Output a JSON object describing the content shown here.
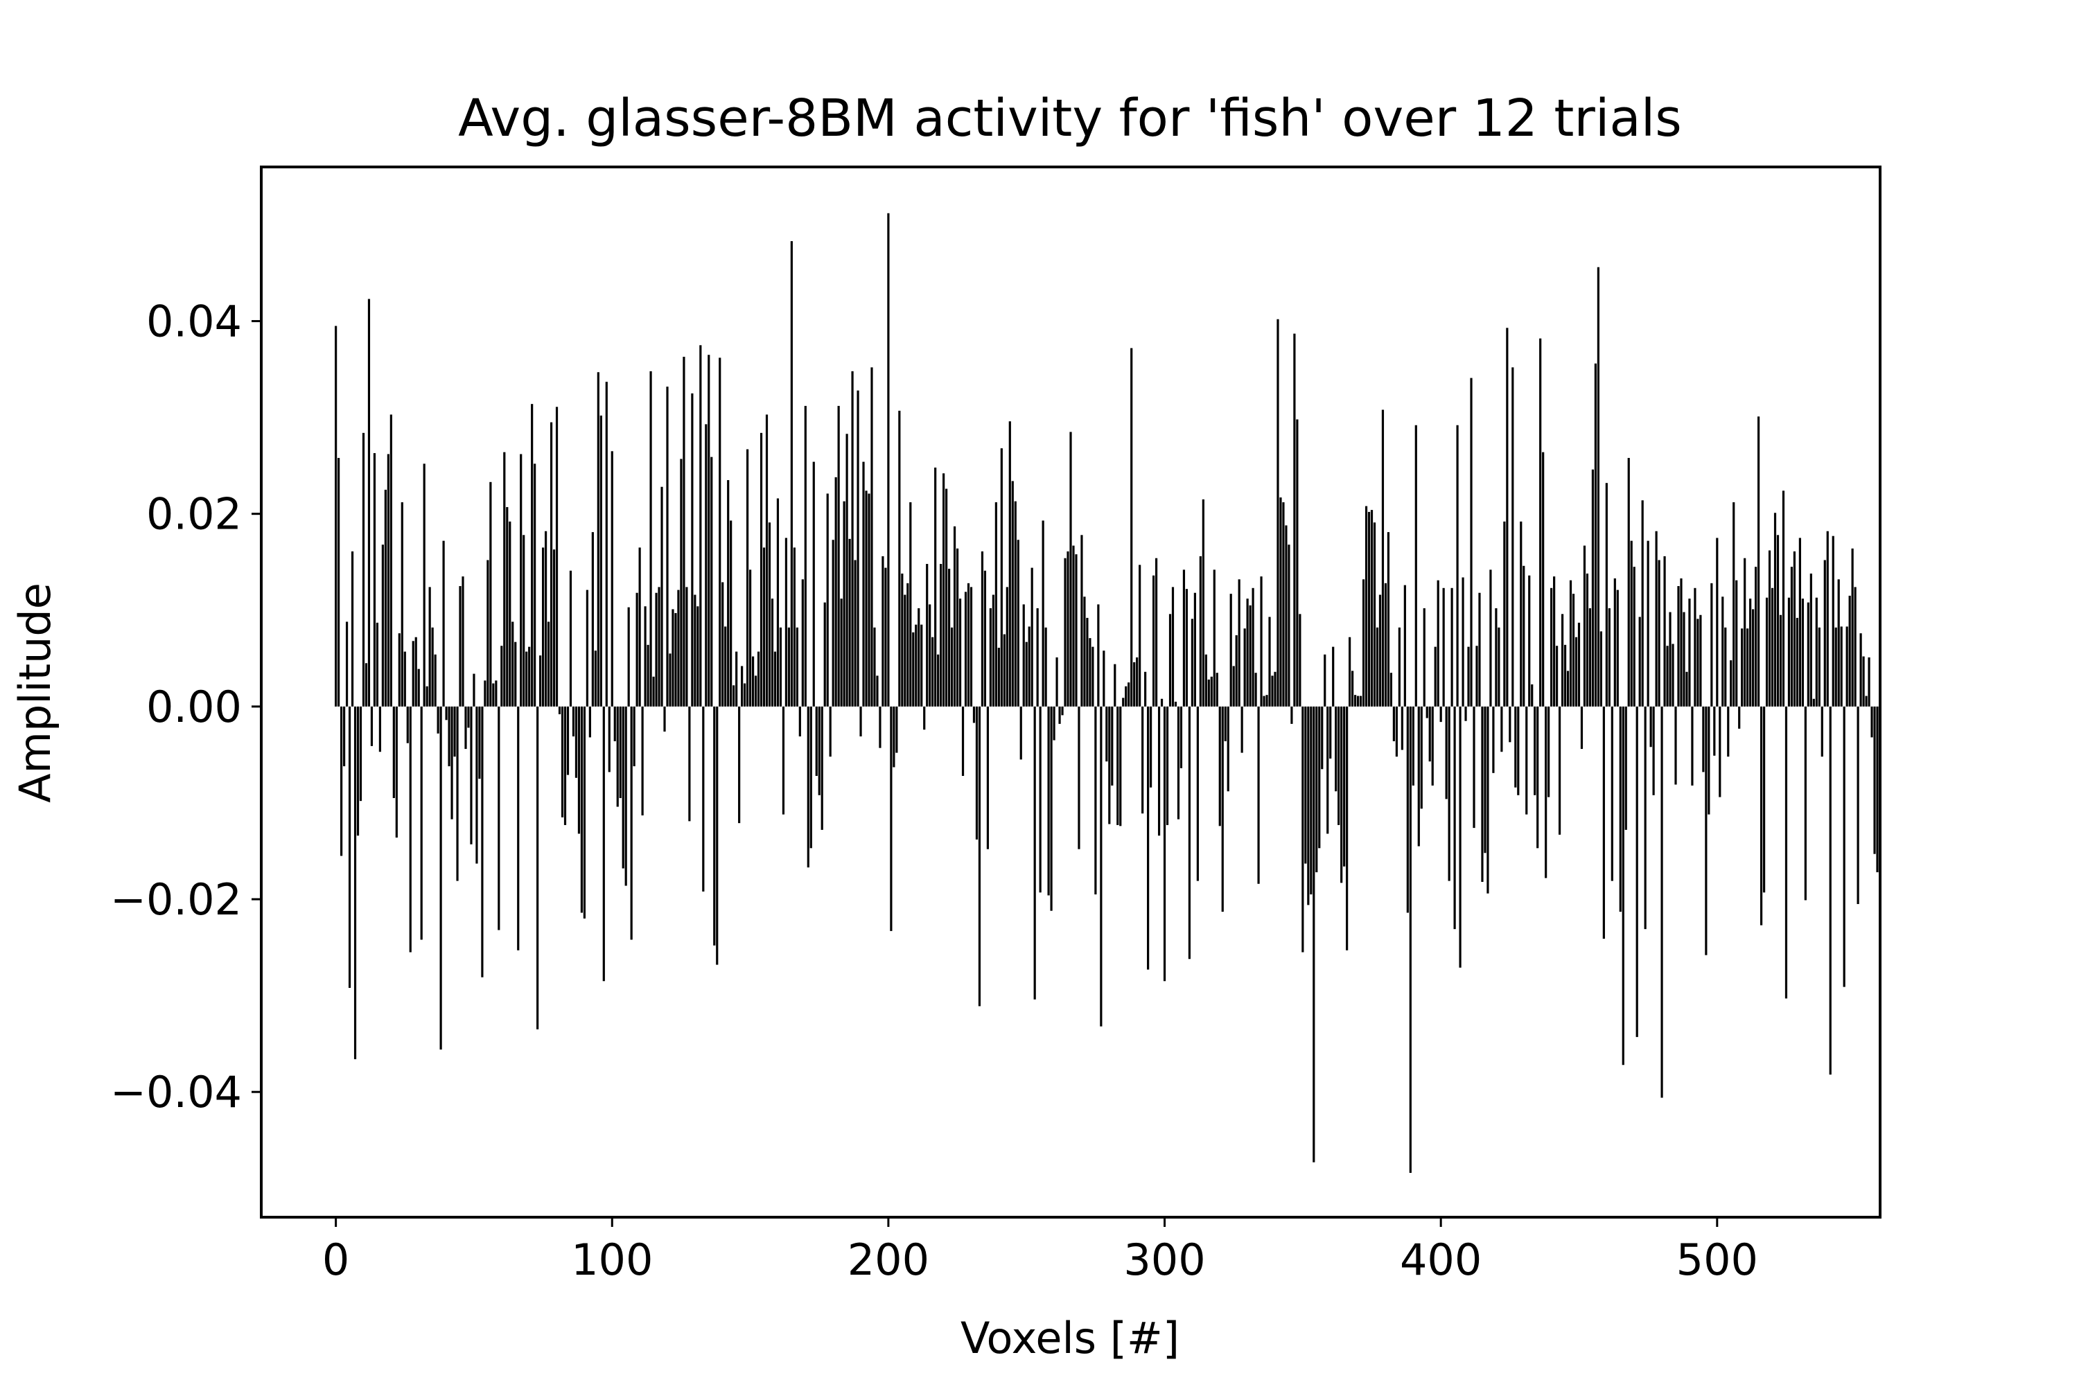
{
  "chart_data": {
    "type": "bar",
    "title": "Avg. glasser-8BM activity for 'fish' over 12 trials",
    "xlabel": "Voxels [#]",
    "ylabel": "Amplitude",
    "xlim": [
      -27,
      559
    ],
    "ylim": [
      -0.053,
      0.056
    ],
    "x_ticks": [
      0,
      100,
      200,
      300,
      400,
      500
    ],
    "x_tick_labels": [
      "0",
      "100",
      "200",
      "300",
      "400",
      "500"
    ],
    "y_ticks": [
      -0.04,
      -0.02,
      0.0,
      0.02,
      0.04
    ],
    "y_tick_labels": [
      "−0.04",
      "−0.02",
      "0.00",
      "0.02",
      "0.04"
    ],
    "grid": false,
    "bar_color": "#000000",
    "series": [
      {
        "x_start": 0,
        "x_step": 1,
        "values": [
          0.0395,
          0.0258,
          -0.0155,
          -0.0062,
          0.0088,
          -0.0292,
          0.0161,
          -0.0366,
          -0.0134,
          -0.0098,
          0.0284,
          0.0045,
          0.0423,
          -0.0041,
          0.0263,
          0.0087,
          -0.0047,
          0.0168,
          0.0225,
          0.0262,
          0.0303,
          -0.0095,
          -0.0136,
          0.0076,
          0.0212,
          0.0057,
          -0.0038,
          -0.0255,
          0.0068,
          0.0072,
          0.0039,
          -0.0242,
          0.0252,
          0.0021,
          0.0124,
          0.0082,
          0.0054,
          -0.0028,
          -0.0356,
          0.0172,
          -0.0014,
          -0.0062,
          -0.0117,
          -0.0052,
          -0.0181,
          0.0125,
          0.0135,
          -0.0044,
          -0.0022,
          -0.0143,
          0.0034,
          -0.0163,
          -0.0075,
          -0.0281,
          0.0027,
          0.0152,
          0.0233,
          0.0024,
          0.0027,
          -0.0232,
          0.0063,
          0.0264,
          0.0207,
          0.0192,
          0.0088,
          0.0067,
          -0.0253,
          0.0262,
          0.0178,
          0.0057,
          0.0062,
          0.0314,
          0.0252,
          -0.0335,
          0.0053,
          0.0165,
          0.0182,
          0.0088,
          0.0295,
          0.0163,
          0.0311,
          -0.0008,
          -0.0115,
          -0.0123,
          -0.0071,
          0.0141,
          -0.0031,
          -0.0074,
          -0.0132,
          -0.0214,
          -0.022,
          0.0121,
          -0.0032,
          0.0181,
          0.0058,
          0.0347,
          0.0302,
          -0.0285,
          0.0337,
          -0.0068,
          0.0265,
          -0.0036,
          -0.0104,
          -0.0095,
          -0.0168,
          -0.0186,
          0.0103,
          -0.0242,
          -0.0062,
          0.0118,
          0.0165,
          -0.0113,
          0.0104,
          0.0064,
          0.0348,
          0.0031,
          0.0118,
          0.0124,
          0.0228,
          -0.0026,
          0.0332,
          0.0055,
          0.0101,
          0.0097,
          0.0121,
          0.0257,
          0.0363,
          0.0124,
          -0.0119,
          0.0325,
          0.0116,
          0.0104,
          0.0375,
          -0.0192,
          0.0293,
          0.0365,
          0.0259,
          -0.0248,
          -0.0268,
          0.0362,
          0.0129,
          0.0083,
          0.0235,
          0.0193,
          0.0022,
          0.0057,
          -0.0121,
          0.0042,
          0.0024,
          0.0267,
          0.0142,
          0.0052,
          0.0032,
          0.0057,
          0.0284,
          0.0165,
          0.0303,
          0.0191,
          0.0112,
          0.0057,
          0.0216,
          0.0082,
          -0.0112,
          0.0175,
          0.0082,
          0.0483,
          0.0165,
          0.0082,
          -0.0031,
          0.0132,
          0.0312,
          -0.0167,
          -0.0147,
          0.0254,
          -0.0072,
          -0.0092,
          -0.0128,
          0.0108,
          0.0221,
          -0.0052,
          0.0173,
          0.0238,
          0.0312,
          0.0112,
          0.0213,
          0.0283,
          0.0174,
          0.0348,
          0.0152,
          0.0328,
          -0.0031,
          0.0254,
          0.0224,
          0.0221,
          0.0352,
          0.0082,
          0.0032,
          -0.0043,
          0.0156,
          0.0144,
          0.0512,
          -0.0233,
          -0.0063,
          -0.0048,
          0.0307,
          0.0138,
          0.0116,
          0.0128,
          0.0212,
          0.0077,
          0.0085,
          0.0102,
          0.0085,
          -0.0024,
          0.0148,
          0.0106,
          0.0072,
          0.0248,
          0.0054,
          0.0148,
          0.0242,
          0.0226,
          0.0143,
          0.0082,
          0.0187,
          0.0164,
          0.0112,
          -0.0072,
          0.0119,
          0.0128,
          0.0124,
          -0.0017,
          -0.0138,
          -0.0311,
          0.0161,
          0.0141,
          -0.0148,
          0.0102,
          0.0116,
          0.0212,
          0.0061,
          0.0268,
          0.0075,
          0.0124,
          0.0296,
          0.0234,
          0.0213,
          0.0173,
          -0.0055,
          0.0106,
          0.0067,
          0.0083,
          0.0144,
          -0.0304,
          0.0102,
          -0.0193,
          0.0193,
          0.0082,
          -0.0196,
          -0.0212,
          -0.0035,
          0.0051,
          -0.0018,
          -0.0009,
          0.0154,
          0.0161,
          0.0285,
          0.0167,
          0.0158,
          -0.0148,
          0.0178,
          0.0114,
          0.0092,
          0.0071,
          0.0062,
          -0.0195,
          0.0106,
          -0.0332,
          0.0058,
          -0.0057,
          -0.0122,
          -0.0082,
          0.0044,
          -0.0123,
          -0.0124,
          0.0009,
          0.0021,
          0.0025,
          0.0372,
          0.0046,
          0.0051,
          0.0147,
          -0.0111,
          0.0036,
          -0.0273,
          -0.0084,
          0.0136,
          0.0154,
          -0.0134,
          0.0008,
          -0.0285,
          -0.0123,
          0.0096,
          0.0124,
          0.0005,
          -0.0117,
          -0.0064,
          0.0142,
          0.0122,
          -0.0262,
          0.0091,
          0.0118,
          -0.0181,
          0.0156,
          0.0215,
          0.0054,
          0.0028,
          0.0031,
          0.0142,
          0.0035,
          -0.0124,
          -0.0213,
          -0.0036,
          -0.0088,
          0.0117,
          0.0042,
          0.0074,
          0.0132,
          -0.0048,
          0.0081,
          0.0112,
          0.0105,
          0.0123,
          0.0035,
          -0.0184,
          0.0135,
          0.0011,
          0.0012,
          0.0093,
          0.0032,
          0.0036,
          0.0402,
          0.0217,
          0.0212,
          0.0188,
          0.0168,
          -0.0018,
          0.0387,
          0.0298,
          0.0096,
          -0.0255,
          -0.0163,
          -0.0206,
          -0.0195,
          -0.0473,
          -0.0172,
          -0.0147,
          -0.0065,
          0.0054,
          -0.0132,
          -0.0054,
          0.0062,
          -0.0088,
          -0.0123,
          -0.0183,
          -0.0166,
          -0.0253,
          0.0072,
          0.0037,
          0.0012,
          0.0011,
          0.0011,
          0.0132,
          0.0208,
          0.0202,
          0.0204,
          0.0191,
          0.0082,
          0.0116,
          0.0308,
          0.0128,
          0.0181,
          0.0035,
          -0.0036,
          -0.0052,
          0.0082,
          -0.0045,
          0.0126,
          -0.0214,
          -0.0484,
          -0.0082,
          0.0292,
          -0.0145,
          -0.0106,
          0.0102,
          -0.0012,
          -0.0057,
          -0.0082,
          0.0062,
          0.0131,
          -0.0016,
          0.0123,
          -0.0096,
          -0.0181,
          0.0123,
          -0.0231,
          0.0292,
          -0.0271,
          0.0134,
          -0.0015,
          0.0062,
          0.0341,
          -0.0126,
          0.0063,
          0.0118,
          -0.0182,
          -0.0152,
          -0.0194,
          0.0142,
          -0.0069,
          0.0102,
          0.0082,
          -0.0047,
          0.0192,
          0.0393,
          -0.0037,
          0.0352,
          -0.0084,
          -0.0092,
          0.0192,
          0.0146,
          -0.0112,
          0.0136,
          0.0023,
          -0.0092,
          -0.0147,
          0.0382,
          0.0264,
          -0.0178,
          -0.0094,
          0.0123,
          0.0135,
          0.0063,
          -0.0133,
          0.0096,
          0.0064,
          0.0037,
          0.0131,
          0.0117,
          0.0072,
          0.0087,
          -0.0044,
          0.0167,
          0.0138,
          0.0102,
          0.0246,
          0.0356,
          0.0456,
          0.0078,
          -0.0241,
          0.0232,
          0.0102,
          -0.0181,
          0.0133,
          0.0121,
          -0.0213,
          -0.0372,
          -0.0128,
          0.0258,
          0.0172,
          0.0145,
          -0.0343,
          0.0093,
          0.0214,
          -0.0231,
          0.0172,
          -0.0042,
          -0.0092,
          0.0182,
          0.0152,
          -0.0406,
          0.0156,
          0.0063,
          0.0098,
          0.0065,
          -0.0081,
          0.0125,
          0.0133,
          0.0098,
          0.0036,
          0.0112,
          -0.0082,
          0.0123,
          0.0091,
          0.0095,
          -0.0068,
          -0.0258,
          -0.0112,
          0.0128,
          -0.0051,
          0.0175,
          -0.0094,
          0.0114,
          0.0082,
          -0.0052,
          0.0048,
          0.0212,
          0.0131,
          -0.0023,
          0.0081,
          0.0154,
          0.0081,
          0.0112,
          0.0101,
          0.0145,
          0.0301,
          -0.0227,
          -0.0193,
          0.0113,
          0.0162,
          0.0123,
          0.0201,
          0.0178,
          0.0095,
          0.0224,
          -0.0303,
          0.0113,
          0.0145,
          0.0161,
          0.0092,
          0.0175,
          0.0112,
          -0.0201,
          0.0108,
          0.0138,
          0.0008,
          0.0113,
          0.0082,
          -0.0052,
          0.0152,
          0.0182,
          -0.0382,
          0.0177,
          0.0082,
          0.0132,
          0.0083,
          -0.0291,
          0.0083,
          0.0115,
          0.0164,
          0.0124,
          -0.0205,
          0.0076,
          0.0052,
          0.0011,
          0.0051,
          -0.0032,
          -0.0153,
          -0.0172
        ]
      }
    ]
  }
}
